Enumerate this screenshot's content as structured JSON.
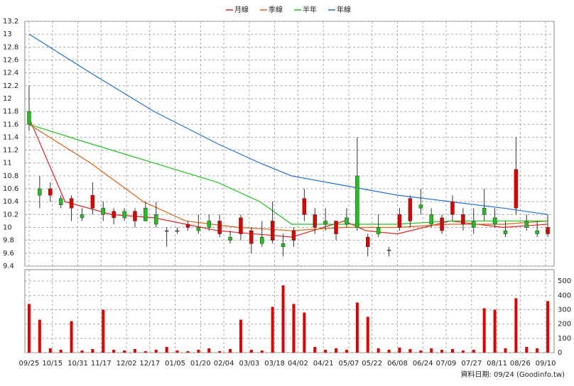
{
  "chart_data": {
    "type": "candlestick",
    "legend": [
      {
        "name": "月線",
        "color": "#e02020"
      },
      {
        "name": "季線",
        "color": "#e06010"
      },
      {
        "name": "半年",
        "color": "#20c020"
      },
      {
        "name": "年線",
        "color": "#2070d0"
      }
    ],
    "footer": "資料日期: 09/24  (Goodinfo.tw)",
    "up_color": "#e00000",
    "down_color": "#20c020",
    "volume_color": "#e00000",
    "xlim": [
      -1,
      249
    ],
    "xticks": [
      {
        "value": 1,
        "label": "09/25"
      },
      {
        "value": 12,
        "label": "10/15"
      },
      {
        "value": 24,
        "label": "10/31"
      },
      {
        "value": 35,
        "label": "11/17"
      },
      {
        "value": 47,
        "label": "12/02"
      },
      {
        "value": 58,
        "label": "12/17"
      },
      {
        "value": 70,
        "label": "01/05"
      },
      {
        "value": 82,
        "label": "01/20"
      },
      {
        "value": 93,
        "label": "02/04"
      },
      {
        "value": 105,
        "label": "03/03"
      },
      {
        "value": 117,
        "label": "03/18"
      },
      {
        "value": 128,
        "label": "04/02"
      },
      {
        "value": 140,
        "label": "04/21"
      },
      {
        "value": 152,
        "label": "05/07"
      },
      {
        "value": 163,
        "label": "05/22"
      },
      {
        "value": 175,
        "label": "06/08"
      },
      {
        "value": 187,
        "label": "06/24"
      },
      {
        "value": 198,
        "label": "07/09"
      },
      {
        "value": 210,
        "label": "07/27"
      },
      {
        "value": 222,
        "label": "08/11"
      },
      {
        "value": 233,
        "label": "08/26"
      },
      {
        "value": 245,
        "label": "09/10"
      }
    ],
    "ylim": [
      9.4,
      13.2
    ],
    "yticks": [
      9.4,
      9.6,
      9.8,
      10,
      10.2,
      10.4,
      10.6,
      10.8,
      11,
      11.2,
      11.4,
      11.6,
      11.8,
      12,
      12.2,
      12.4,
      12.6,
      12.8,
      13,
      13.2
    ],
    "y2lim": [
      0,
      580
    ],
    "y2ticks": [
      0,
      100,
      200,
      300,
      400,
      500
    ],
    "grid": true,
    "x": [
      1,
      6,
      11,
      16,
      21,
      26,
      31,
      36,
      41,
      46,
      51,
      56,
      61,
      66,
      71,
      76,
      81,
      86,
      91,
      96,
      101,
      106,
      111,
      116,
      121,
      126,
      131,
      136,
      141,
      146,
      151,
      156,
      161,
      166,
      171,
      176,
      181,
      186,
      191,
      196,
      201,
      206,
      211,
      216,
      221,
      226,
      231,
      236,
      241,
      246
    ],
    "ohlc": [
      [
        11.8,
        12.2,
        11.5,
        11.6
      ],
      [
        10.6,
        10.8,
        10.3,
        10.5
      ],
      [
        10.5,
        10.7,
        10.4,
        10.6
      ],
      [
        10.45,
        10.5,
        10.3,
        10.35
      ],
      [
        10.3,
        10.5,
        10.1,
        10.45
      ],
      [
        10.2,
        10.3,
        10.1,
        10.15
      ],
      [
        10.3,
        10.7,
        10.2,
        10.5
      ],
      [
        10.3,
        10.4,
        10.1,
        10.2
      ],
      [
        10.15,
        10.3,
        10.05,
        10.25
      ],
      [
        10.25,
        10.3,
        10.1,
        10.15
      ],
      [
        10.1,
        10.3,
        10,
        10.25
      ],
      [
        10.3,
        10.4,
        10.1,
        10.1
      ],
      [
        10.2,
        10.4,
        10,
        10.05
      ],
      [
        9.95,
        10,
        9.7,
        9.95
      ],
      [
        9.95,
        10,
        9.9,
        9.95
      ],
      [
        10,
        10.1,
        9.95,
        10.05
      ],
      [
        10,
        10.2,
        9.9,
        9.95
      ],
      [
        10.1,
        10.2,
        9.95,
        10
      ],
      [
        9.9,
        10.2,
        9.85,
        10.1
      ],
      [
        9.85,
        9.95,
        9.75,
        9.8
      ],
      [
        9.9,
        10.2,
        9.8,
        10.15
      ],
      [
        9.75,
        10,
        9.6,
        9.95
      ],
      [
        9.85,
        10.1,
        9.7,
        9.75
      ],
      [
        9.8,
        10.4,
        9.75,
        10.1
      ],
      [
        9.75,
        9.9,
        9.55,
        9.7
      ],
      [
        9.8,
        10,
        9.7,
        9.95
      ],
      [
        10.2,
        10.6,
        10.1,
        10.45
      ],
      [
        10,
        10.3,
        9.9,
        10.2
      ],
      [
        10.1,
        10.3,
        9.95,
        10.05
      ],
      [
        9.9,
        10.1,
        9.8,
        10.1
      ],
      [
        10.15,
        10.3,
        10,
        10.05
      ],
      [
        10.8,
        11.4,
        9.95,
        10
      ],
      [
        9.7,
        9.9,
        9.55,
        9.85
      ],
      [
        10,
        10.2,
        9.85,
        9.9
      ],
      [
        9.65,
        9.7,
        9.55,
        9.65
      ],
      [
        10,
        10.3,
        9.95,
        10.2
      ],
      [
        10.1,
        10.5,
        10,
        10.45
      ],
      [
        10.35,
        10.6,
        10.2,
        10.3
      ],
      [
        10.2,
        10.3,
        10,
        10.05
      ],
      [
        9.95,
        10.2,
        9.9,
        10.15
      ],
      [
        10.2,
        10.5,
        10.1,
        10.4
      ],
      [
        10.05,
        10.3,
        9.95,
        10.2
      ],
      [
        10.1,
        10.3,
        9.9,
        10
      ],
      [
        10.3,
        10.6,
        10.1,
        10.2
      ],
      [
        10.15,
        10.3,
        10,
        10.05
      ],
      [
        9.95,
        10.1,
        9.85,
        9.9
      ],
      [
        10.3,
        11.4,
        10.2,
        10.9
      ],
      [
        10.1,
        10.2,
        9.95,
        10
      ],
      [
        9.95,
        10.1,
        9.85,
        9.9
      ],
      [
        9.9,
        10.2,
        9.85,
        10
      ]
    ],
    "volume": [
      340,
      230,
      30,
      20,
      220,
      15,
      25,
      300,
      20,
      15,
      25,
      10,
      20,
      40,
      15,
      10,
      20,
      30,
      10,
      25,
      230,
      20,
      15,
      320,
      470,
      340,
      280,
      40,
      20,
      30,
      20,
      350,
      250,
      30,
      20,
      35,
      25,
      15,
      30,
      20,
      25,
      15,
      20,
      310,
      300,
      30,
      380,
      40,
      30,
      360
    ],
    "lines": [
      {
        "x": [
          1,
          18,
          40,
          60,
          90,
          125,
          150,
          160,
          175,
          200,
          225,
          246
        ],
        "values": [
          11.7,
          10.4,
          10.2,
          10.15,
          9.95,
          9.85,
          10.1,
          9.95,
          9.9,
          10.1,
          10,
          10.05
        ]
      },
      {
        "x": [
          1,
          30,
          55,
          75,
          100,
          125,
          150,
          175,
          200,
          225,
          246
        ],
        "values": [
          11.6,
          11,
          10.4,
          10.1,
          10,
          9.95,
          10,
          10,
          10.05,
          10.05,
          10.1
        ]
      },
      {
        "x": [
          1,
          30,
          60,
          90,
          110,
          125,
          150,
          175,
          200,
          225,
          246
        ],
        "values": [
          11.6,
          11.3,
          11,
          10.7,
          10.4,
          10.05,
          10.05,
          10.05,
          10.1,
          10.1,
          10.1
        ]
      },
      {
        "x": [
          1,
          30,
          60,
          90,
          110,
          125,
          150,
          175,
          200,
          225,
          246
        ],
        "values": [
          13,
          12.4,
          11.8,
          11.3,
          11,
          10.8,
          10.65,
          10.5,
          10.4,
          10.3,
          10.2
        ]
      }
    ]
  }
}
